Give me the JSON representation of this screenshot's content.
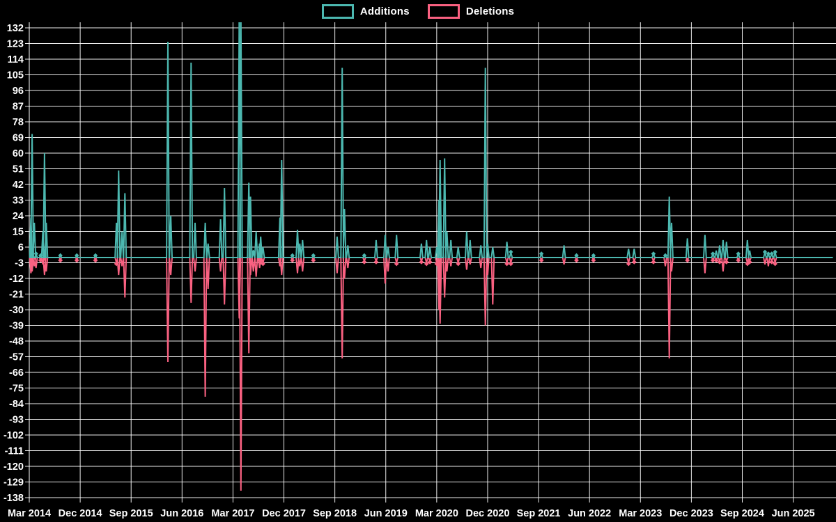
{
  "legend": {
    "items": [
      {
        "label": "Additions",
        "color": "#4cb8b0"
      },
      {
        "label": "Deletions",
        "color": "#fa6181"
      }
    ]
  },
  "colors": {
    "background": "#000000",
    "grid": "#ffffff",
    "text": "#ffffff",
    "additions": "#4cb8b0",
    "deletions": "#fa6181"
  },
  "chart_data": {
    "type": "line",
    "title": "",
    "xlabel": "",
    "ylabel": "",
    "grid": true,
    "legend_position": "top-center",
    "background": "#000000",
    "y_axis": {
      "ticks": [
        132,
        123,
        114,
        105,
        96,
        87,
        78,
        69,
        60,
        51,
        42,
        33,
        24,
        15,
        6,
        -3,
        -12,
        -21,
        -30,
        -39,
        -48,
        -57,
        -66,
        -75,
        -84,
        -93,
        -102,
        -111,
        -120,
        -129,
        -138
      ],
      "min": -139,
      "max": 135
    },
    "x_axis": {
      "tick_labels": [
        "Mar 2014",
        "Dec 2014",
        "Sep 2015",
        "Jun 2016",
        "Mar 2017",
        "Dec 2017",
        "Sep 2018",
        "Jun 2019",
        "Mar 2020",
        "Dec 2020",
        "Sep 2021",
        "Jun 2022",
        "Mar 2023",
        "Dec 2023",
        "Sep 2024",
        "Jun 2025"
      ],
      "tick_months": [
        0,
        9,
        18,
        27,
        36,
        45,
        54,
        63,
        72,
        81,
        90,
        99,
        108,
        117,
        126,
        135
      ],
      "domain_months": [
        0,
        142
      ]
    },
    "x_months": [
      0.3,
      0.5,
      0.9,
      1.2,
      2.0,
      2.4,
      2.7,
      3.0,
      5.5,
      8.4,
      11.7,
      15.4,
      15.8,
      16.4,
      16.9,
      24.5,
      25.0,
      28.6,
      29.3,
      31.1,
      31.6,
      33.8,
      34.5,
      37.1,
      37.4,
      38.8,
      39.1,
      39.6,
      40.1,
      40.7,
      40.9,
      41.3,
      44.3,
      44.6,
      46.5,
      47.4,
      47.8,
      48.3,
      50.2,
      54.4,
      55.3,
      55.7,
      56.3,
      59.2,
      61.3,
      62.9,
      63.4,
      64.9,
      69.3,
      70.2,
      70.8,
      72.0,
      72.4,
      72.6,
      73.4,
      73.8,
      74.5,
      75.8,
      77.3,
      77.9,
      79.8,
      80.6,
      81.0,
      81.9,
      84.4,
      85.1,
      90.5,
      94.5,
      96.7,
      99.7,
      105.9,
      106.9,
      110.3,
      112.4,
      113.1,
      113.5,
      116.3,
      119.4,
      120.8,
      121.4,
      122.0,
      122.6,
      123.2,
      125.3,
      126.9,
      127.3,
      130.0,
      130.6,
      131.2,
      131.8
    ],
    "series": [
      {
        "name": "Additions",
        "color": "#4cb8b0",
        "values": [
          23,
          71,
          20,
          2,
          1,
          15,
          60,
          20,
          1,
          1,
          1,
          20,
          50,
          15,
          37,
          124,
          24,
          112,
          20,
          20,
          8,
          22,
          40,
          139,
          139,
          43,
          35,
          3,
          15,
          8,
          12,
          6,
          23,
          56,
          1,
          16,
          8,
          10,
          1,
          12,
          109,
          28,
          7,
          1,
          10,
          13,
          6,
          13,
          8,
          10,
          6,
          6,
          33,
          56,
          57,
          15,
          10,
          6,
          15,
          10,
          7,
          109,
          8,
          6,
          9,
          3,
          2,
          7,
          1,
          1,
          5,
          5,
          2,
          1,
          35,
          20,
          11,
          13,
          2,
          4,
          7,
          10,
          9,
          2,
          10,
          4,
          3,
          2,
          2,
          3
        ]
      },
      {
        "name": "Deletions",
        "color": "#fa6181",
        "values": [
          -9,
          -8,
          -5,
          -6,
          -1,
          -4,
          -10,
          -8,
          -1,
          -1,
          -1,
          -3,
          -10,
          -5,
          -23,
          -60,
          -10,
          -26,
          -8,
          -80,
          -18,
          -8,
          -27,
          -35,
          -134,
          -55,
          -10,
          -8,
          -11,
          -6,
          -4,
          -3,
          -5,
          -10,
          -1,
          -9,
          -5,
          -8,
          -1,
          -9,
          -58,
          -12,
          -6,
          -2,
          -2,
          -15,
          -8,
          -3,
          -2,
          -3,
          -2,
          -3,
          -30,
          -38,
          -23,
          -8,
          -5,
          -3,
          -7,
          -4,
          -6,
          -39,
          -10,
          -27,
          -3,
          -3,
          -1,
          -4,
          -1,
          -1,
          -3,
          -2,
          -2,
          -5,
          -58,
          -8,
          -1,
          -9,
          -1,
          -1,
          -2,
          -8,
          -2,
          -1,
          -3,
          -2,
          -4,
          -5,
          -2,
          -3
        ]
      }
    ]
  }
}
